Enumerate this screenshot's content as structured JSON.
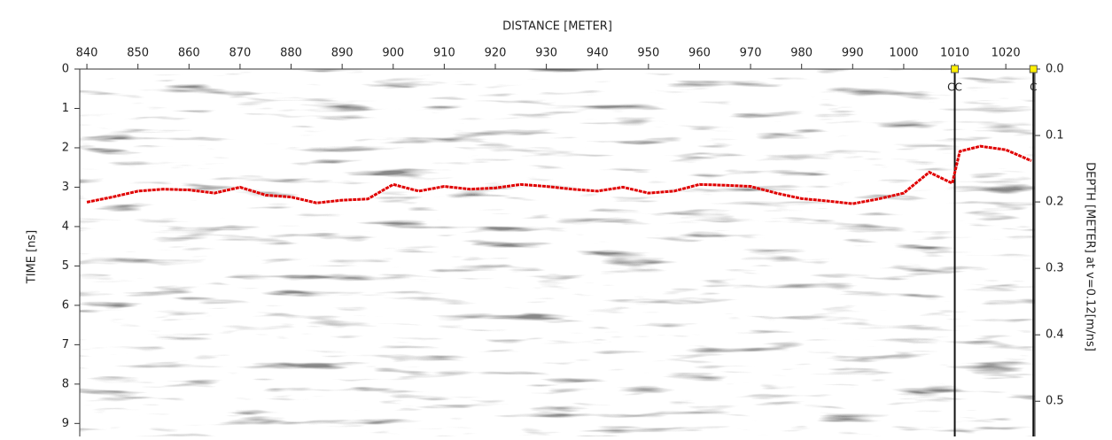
{
  "chart_data": {
    "type": "line",
    "title": "DISTANCE [METER]",
    "ylabel": "TIME [ns]",
    "y2label": "DEPTH [METER] at v=0.12[m/ns]",
    "x": [
      840,
      845,
      850,
      855,
      860,
      865,
      870,
      875,
      880,
      885,
      890,
      895,
      900,
      905,
      910,
      915,
      920,
      925,
      930,
      935,
      940,
      945,
      950,
      955,
      960,
      965,
      970,
      975,
      980,
      985,
      990,
      995,
      1000,
      1005,
      1009.5,
      1011,
      1015,
      1020,
      1025
    ],
    "series": [
      {
        "color": "#e00000",
        "values": [
          3.38,
          3.25,
          3.1,
          3.05,
          3.07,
          3.15,
          3.0,
          3.2,
          3.25,
          3.4,
          3.33,
          3.3,
          2.93,
          3.1,
          2.98,
          3.05,
          3.02,
          2.93,
          2.98,
          3.05,
          3.1,
          3.0,
          3.15,
          3.1,
          2.93,
          2.95,
          2.98,
          3.15,
          3.29,
          3.35,
          3.42,
          3.3,
          3.15,
          2.62,
          2.9,
          2.09,
          1.96,
          2.05,
          2.33
        ]
      }
    ],
    "markers": [
      {
        "x": 1010,
        "label": "CC"
      },
      {
        "x": 1025.4,
        "label": "C"
      }
    ],
    "xlim": [
      838.6,
      1025.7
    ],
    "xticks": [
      840,
      850,
      860,
      870,
      880,
      890,
      900,
      910,
      920,
      930,
      940,
      950,
      960,
      970,
      980,
      990,
      1000,
      1010,
      1020
    ],
    "ylim": [
      0,
      9.33
    ],
    "yticks": [
      0,
      1,
      2,
      3,
      4,
      5,
      6,
      7,
      8,
      9
    ],
    "y2lim": [
      0,
      0.553
    ],
    "y2ticks": [
      {
        "value": 0,
        "label": "0.0"
      },
      0.1,
      0.2,
      0.3,
      0.4,
      0.5
    ],
    "inverted_y": true
  }
}
